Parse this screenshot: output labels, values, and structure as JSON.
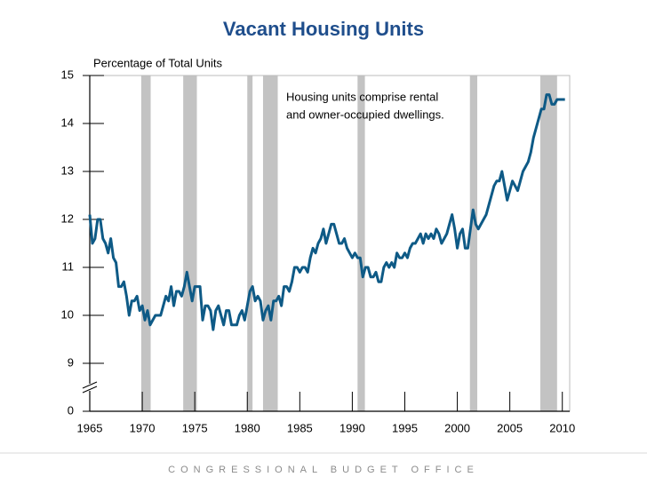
{
  "chart_data": {
    "type": "line",
    "title": "Vacant Housing Units",
    "y_label": "Percentage of Total Units",
    "annotation": [
      "Housing units comprise rental",
      "and owner-occupied dwellings."
    ],
    "footer": "CONGRESSIONAL BUDGET OFFICE",
    "color": "#0e5a86",
    "recession_color": "#c3c3c3",
    "recessions": [
      [
        1969.9,
        1970.8
      ],
      [
        1973.9,
        1975.2
      ],
      [
        1980.0,
        1980.5
      ],
      [
        1981.5,
        1982.9
      ],
      [
        1990.5,
        1991.2
      ],
      [
        2001.2,
        2001.9
      ],
      [
        2007.9,
        2009.5
      ]
    ],
    "xlim": [
      1965,
      2010.7
    ],
    "xticks": [
      1965,
      1970,
      1975,
      1980,
      1985,
      1990,
      1995,
      2000,
      2005,
      2010
    ],
    "ylim": [
      0,
      15
    ],
    "yticks": [
      0,
      9,
      10,
      11,
      12,
      13,
      14,
      15
    ],
    "axis_break": [
      0,
      9
    ],
    "x": [
      1965,
      1965.25,
      1965.5,
      1965.75,
      1966,
      1966.25,
      1966.5,
      1966.75,
      1967,
      1967.25,
      1967.5,
      1967.75,
      1968,
      1968.25,
      1968.5,
      1968.75,
      1969,
      1969.25,
      1969.5,
      1969.75,
      1970,
      1970.25,
      1970.5,
      1970.75,
      1971,
      1971.25,
      1971.5,
      1971.75,
      1972,
      1972.25,
      1972.5,
      1972.75,
      1973,
      1973.25,
      1973.5,
      1973.75,
      1974,
      1974.25,
      1974.5,
      1974.75,
      1975,
      1975.25,
      1975.5,
      1975.75,
      1976,
      1976.25,
      1976.5,
      1976.75,
      1977,
      1977.25,
      1977.5,
      1977.75,
      1978,
      1978.25,
      1978.5,
      1978.75,
      1979,
      1979.25,
      1979.5,
      1979.75,
      1980,
      1980.25,
      1980.5,
      1980.75,
      1981,
      1981.25,
      1981.5,
      1981.75,
      1982,
      1982.25,
      1982.5,
      1982.75,
      1983,
      1983.25,
      1983.5,
      1983.75,
      1984,
      1984.25,
      1984.5,
      1984.75,
      1985,
      1985.25,
      1985.5,
      1985.75,
      1986,
      1986.25,
      1986.5,
      1986.75,
      1987,
      1987.25,
      1987.5,
      1987.75,
      1988,
      1988.25,
      1988.5,
      1988.75,
      1989,
      1989.25,
      1989.5,
      1989.75,
      1990,
      1990.25,
      1990.5,
      1990.75,
      1991,
      1991.25,
      1991.5,
      1991.75,
      1992,
      1992.25,
      1992.5,
      1992.75,
      1993,
      1993.25,
      1993.5,
      1993.75,
      1994,
      1994.25,
      1994.5,
      1994.75,
      1995,
      1995.25,
      1995.5,
      1995.75,
      1996,
      1996.25,
      1996.5,
      1996.75,
      1997,
      1997.25,
      1997.5,
      1997.75,
      1998,
      1998.25,
      1998.5,
      1998.75,
      1999,
      1999.25,
      1999.5,
      1999.75,
      2000,
      2000.25,
      2000.5,
      2000.75,
      2001,
      2001.25,
      2001.5,
      2001.75,
      2002,
      2002.25,
      2002.5,
      2002.75,
      2003,
      2003.25,
      2003.5,
      2003.75,
      2004,
      2004.25,
      2004.5,
      2004.75,
      2005,
      2005.25,
      2005.5,
      2005.75,
      2006,
      2006.25,
      2006.5,
      2006.75,
      2007,
      2007.25,
      2007.5,
      2007.75,
      2008,
      2008.25,
      2008.5,
      2008.75,
      2009,
      2009.25,
      2009.5,
      2009.75,
      2010,
      2010.25
    ],
    "values": [
      12.1,
      11.5,
      11.6,
      12.0,
      12.0,
      11.6,
      11.5,
      11.3,
      11.6,
      11.2,
      11.1,
      10.6,
      10.6,
      10.7,
      10.4,
      10.0,
      10.3,
      10.3,
      10.4,
      10.1,
      10.2,
      9.9,
      10.1,
      9.8,
      9.9,
      10.0,
      10.0,
      10.0,
      10.2,
      10.4,
      10.3,
      10.6,
      10.2,
      10.5,
      10.5,
      10.4,
      10.6,
      10.9,
      10.6,
      10.3,
      10.6,
      10.6,
      10.6,
      9.9,
      10.2,
      10.2,
      10.1,
      9.7,
      10.1,
      10.2,
      10.0,
      9.8,
      10.1,
      10.1,
      9.8,
      9.8,
      9.8,
      10.0,
      10.1,
      9.9,
      10.2,
      10.5,
      10.6,
      10.3,
      10.4,
      10.3,
      9.9,
      10.1,
      10.2,
      9.9,
      10.3,
      10.3,
      10.4,
      10.2,
      10.6,
      10.6,
      10.5,
      10.7,
      11.0,
      11.0,
      10.9,
      11.0,
      11.0,
      10.9,
      11.2,
      11.4,
      11.3,
      11.5,
      11.6,
      11.8,
      11.5,
      11.7,
      11.9,
      11.9,
      11.7,
      11.5,
      11.5,
      11.6,
      11.4,
      11.3,
      11.2,
      11.3,
      11.2,
      11.2,
      10.8,
      11.0,
      11.0,
      10.8,
      10.8,
      10.9,
      10.7,
      10.7,
      11.0,
      11.1,
      11.0,
      11.1,
      11.0,
      11.3,
      11.2,
      11.2,
      11.3,
      11.2,
      11.4,
      11.5,
      11.5,
      11.6,
      11.7,
      11.5,
      11.7,
      11.6,
      11.7,
      11.6,
      11.8,
      11.7,
      11.5,
      11.6,
      11.7,
      11.9,
      12.1,
      11.8,
      11.4,
      11.7,
      11.8,
      11.4,
      11.4,
      11.8,
      12.2,
      11.9,
      11.8,
      11.9,
      12.0,
      12.1,
      12.3,
      12.5,
      12.7,
      12.8,
      12.8,
      13.0,
      12.7,
      12.4,
      12.6,
      12.8,
      12.7,
      12.6,
      12.8,
      13.0,
      13.1,
      13.2,
      13.4,
      13.7,
      13.9,
      14.1,
      14.3,
      14.3,
      14.6,
      14.6,
      14.4,
      14.4,
      14.5,
      14.5,
      14.5,
      14.5
    ]
  }
}
